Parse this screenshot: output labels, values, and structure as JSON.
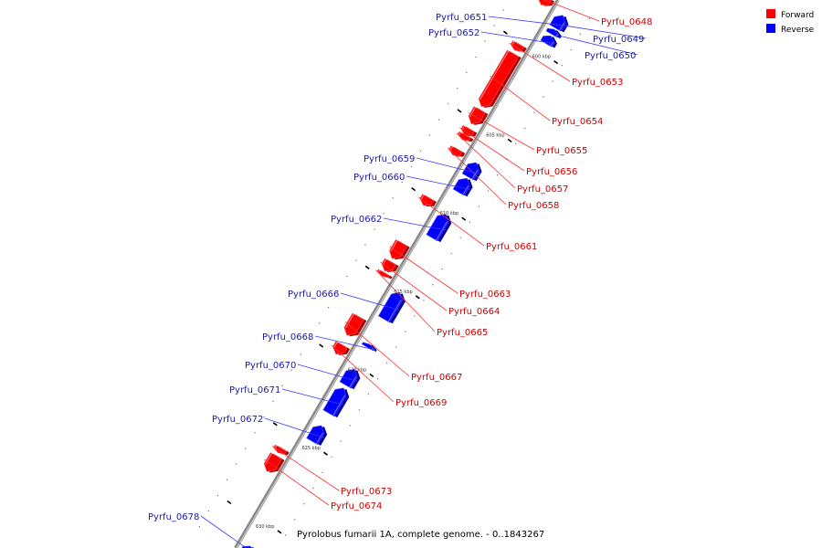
{
  "caption": "Pyrolobus fumarii 1A, complete genome. - 0..1843267",
  "legend": [
    {
      "label": "Forward",
      "color": "#ff0000"
    },
    {
      "label": "Reverse",
      "color": "#0000ff"
    }
  ],
  "colors": {
    "forward": "#ff0000",
    "forward_dark": "#a80000",
    "reverse": "#0000ff",
    "reverse_dark": "#0000a0",
    "axis": "#888888",
    "leader_forward": "#ff3030",
    "leader_reverse": "#3a3aff"
  },
  "axis_range_kbp": [
    597,
    632
  ],
  "ticks": [
    {
      "kbp": 600,
      "label": "600 kbp"
    },
    {
      "kbp": 605,
      "label": "605 kbp"
    },
    {
      "kbp": 610,
      "label": "610 kbp"
    },
    {
      "kbp": 615,
      "label": "615 kbp"
    },
    {
      "kbp": 620,
      "label": "620 kbp"
    },
    {
      "kbp": 625,
      "label": "625 kbp"
    },
    {
      "kbp": 630,
      "label": "630 kbp"
    }
  ],
  "genes": [
    {
      "name": "Pyrfu_0648",
      "strand": "forward",
      "start_kbp": 597.2,
      "end_kbp": 597.7
    },
    {
      "name": "Pyrfu_0649",
      "strand": "reverse",
      "start_kbp": 597.6,
      "end_kbp": 598.4
    },
    {
      "name": "Pyrfu_0650",
      "strand": "reverse",
      "start_kbp": 598.5,
      "end_kbp": 598.8
    },
    {
      "name": "Pyrfu_0651",
      "strand": "reverse",
      "start_kbp": 597.6,
      "end_kbp": 598.4
    },
    {
      "name": "Pyrfu_0652",
      "strand": "reverse",
      "start_kbp": 598.9,
      "end_kbp": 599.4
    },
    {
      "name": "Pyrfu_0653",
      "strand": "forward",
      "start_kbp": 600.2,
      "end_kbp": 600.6
    },
    {
      "name": "Pyrfu_0654",
      "strand": "forward",
      "start_kbp": 600.8,
      "end_kbp": 604.2
    },
    {
      "name": "Pyrfu_0655",
      "strand": "forward",
      "start_kbp": 604.4,
      "end_kbp": 605.3
    },
    {
      "name": "Pyrfu_0656",
      "strand": "forward",
      "start_kbp": 605.6,
      "end_kbp": 606.0
    },
    {
      "name": "Pyrfu_0657",
      "strand": "forward",
      "start_kbp": 606.0,
      "end_kbp": 606.3
    },
    {
      "name": "Pyrfu_0658",
      "strand": "forward",
      "start_kbp": 606.9,
      "end_kbp": 607.3
    },
    {
      "name": "Pyrfu_0659",
      "strand": "reverse",
      "start_kbp": 607.0,
      "end_kbp": 607.9
    },
    {
      "name": "Pyrfu_0660",
      "strand": "reverse",
      "start_kbp": 608.0,
      "end_kbp": 608.9
    },
    {
      "name": "Pyrfu_0661",
      "strand": "forward",
      "start_kbp": 610.0,
      "end_kbp": 610.5
    },
    {
      "name": "Pyrfu_0662",
      "strand": "reverse",
      "start_kbp": 610.3,
      "end_kbp": 611.8
    },
    {
      "name": "Pyrfu_0663",
      "strand": "forward",
      "start_kbp": 612.9,
      "end_kbp": 613.9
    },
    {
      "name": "Pyrfu_0664",
      "strand": "forward",
      "start_kbp": 614.1,
      "end_kbp": 614.7
    },
    {
      "name": "Pyrfu_0665",
      "strand": "forward",
      "start_kbp": 614.8,
      "end_kbp": 615.0
    },
    {
      "name": "Pyrfu_0666",
      "strand": "reverse",
      "start_kbp": 615.3,
      "end_kbp": 617.0
    },
    {
      "name": "Pyrfu_0667",
      "strand": "forward",
      "start_kbp": 617.6,
      "end_kbp": 618.8
    },
    {
      "name": "Pyrfu_0668",
      "strand": "reverse",
      "start_kbp": 618.6,
      "end_kbp": 618.8
    },
    {
      "name": "Pyrfu_0669",
      "strand": "forward",
      "start_kbp": 619.4,
      "end_kbp": 620.0
    },
    {
      "name": "Pyrfu_0670",
      "strand": "reverse",
      "start_kbp": 620.2,
      "end_kbp": 621.2
    },
    {
      "name": "Pyrfu_0671",
      "strand": "reverse",
      "start_kbp": 621.4,
      "end_kbp": 623.0
    },
    {
      "name": "Pyrfu_0672",
      "strand": "reverse",
      "start_kbp": 623.8,
      "end_kbp": 624.8
    },
    {
      "name": "Pyrfu_0673",
      "strand": "forward",
      "start_kbp": 626.0,
      "end_kbp": 626.3
    },
    {
      "name": "Pyrfu_0674",
      "strand": "forward",
      "start_kbp": 626.5,
      "end_kbp": 627.5
    },
    {
      "name": "Pyrfu_0678",
      "strand": "reverse",
      "start_kbp": 631.5,
      "end_kbp": 632.0
    }
  ]
}
